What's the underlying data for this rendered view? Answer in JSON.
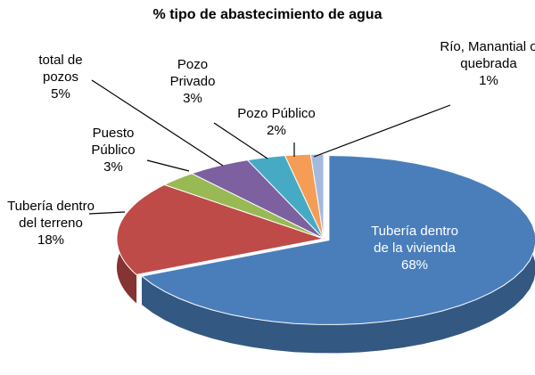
{
  "chart_data": {
    "type": "pie",
    "title": "% tipo de abastecimiento de agua",
    "categories": [
      "Tubería dentro de la vivienda",
      "Tubería dentro del terreno",
      "Puesto Público",
      "total de pozos",
      "Pozo Privado",
      "Pozo Público",
      "Río, Manantial o quebrada"
    ],
    "values": [
      68,
      18,
      3,
      5,
      3,
      2,
      1
    ],
    "value_labels": [
      "68%",
      "18%",
      "3%",
      "5%",
      "3%",
      "2%",
      "1%"
    ],
    "colors": [
      "#4a7ebb",
      "#be4b48",
      "#98b954",
      "#7d60a0",
      "#46aac5",
      "#f59d56",
      "#a5b9dc"
    ]
  }
}
